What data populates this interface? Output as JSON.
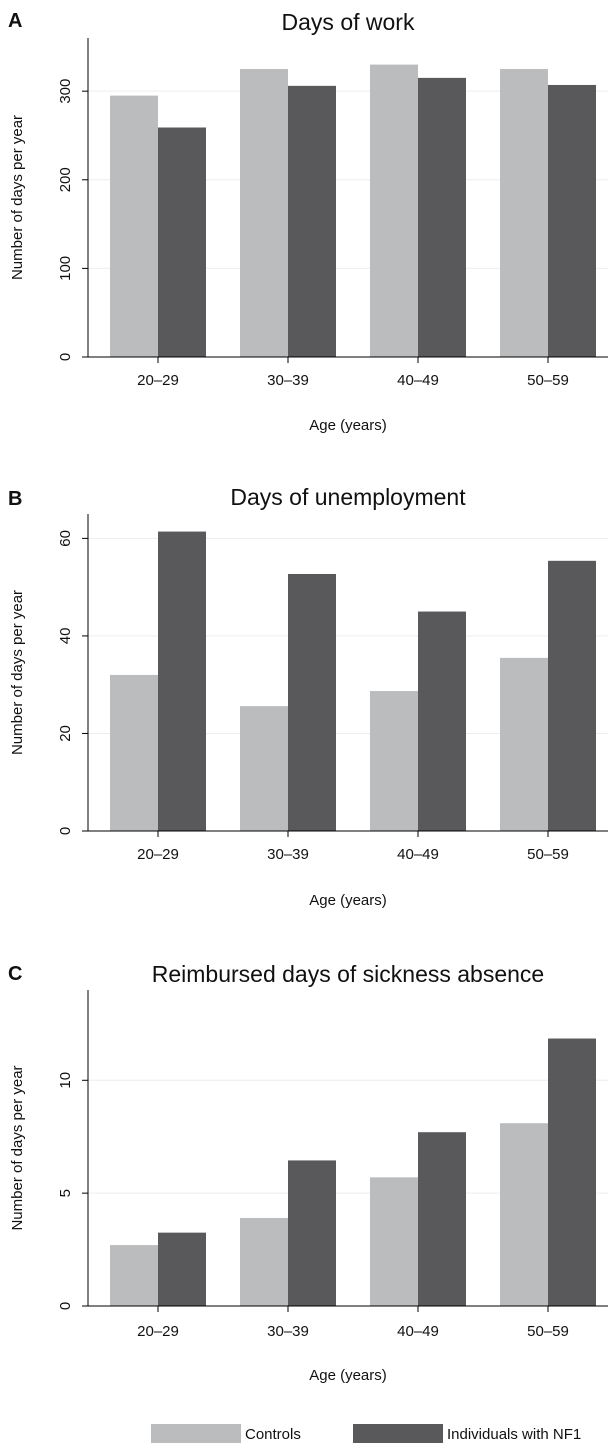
{
  "colors": {
    "controls": "#bbbcbe",
    "nf1": "#59595b",
    "gridline": "#eeeeee",
    "axis": "#000000"
  },
  "legend": [
    {
      "label": "Controls",
      "color_key": "controls"
    },
    {
      "label": "Individuals with NF1",
      "color_key": "nf1"
    }
  ],
  "chart_data": [
    {
      "type": "bar",
      "panel": "A",
      "title": "Days of work",
      "xlabel": "Age (years)",
      "ylabel": "Number of days per year",
      "categories": [
        "20–29",
        "30–39",
        "40–49",
        "50–59"
      ],
      "ylim": [
        0,
        360
      ],
      "yticks": [
        0,
        100,
        200,
        300
      ],
      "grid": true,
      "series": [
        {
          "name": "Controls",
          "color_key": "controls",
          "values": [
            295,
            325,
            330,
            325
          ]
        },
        {
          "name": "Individuals with NF1",
          "color_key": "nf1",
          "values": [
            259,
            306,
            315,
            307
          ]
        }
      ]
    },
    {
      "type": "bar",
      "panel": "B",
      "title": "Days of unemployment",
      "xlabel": "Age (years)",
      "ylabel": "Number of days per year",
      "categories": [
        "20–29",
        "30–39",
        "40–49",
        "50–59"
      ],
      "ylim": [
        0,
        65
      ],
      "yticks": [
        0,
        20,
        40,
        60
      ],
      "grid": true,
      "series": [
        {
          "name": "Controls",
          "color_key": "controls",
          "values": [
            32,
            25.6,
            28.7,
            35.5
          ]
        },
        {
          "name": "Individuals with NF1",
          "color_key": "nf1",
          "values": [
            61.4,
            52.7,
            45,
            55.4
          ]
        }
      ]
    },
    {
      "type": "bar",
      "panel": "C",
      "title": "Reimbursed days of sickness absence",
      "xlabel": "Age (years)",
      "ylabel": "Number of days per year",
      "categories": [
        "20–29",
        "30–39",
        "40–49",
        "50–59"
      ],
      "ylim": [
        0,
        14
      ],
      "yticks": [
        0,
        5,
        10
      ],
      "grid": true,
      "series": [
        {
          "name": "Controls",
          "color_key": "controls",
          "values": [
            2.7,
            3.9,
            5.7,
            8.1
          ]
        },
        {
          "name": "Individuals with NF1",
          "color_key": "nf1",
          "values": [
            3.25,
            6.45,
            7.7,
            11.85
          ]
        }
      ]
    }
  ]
}
